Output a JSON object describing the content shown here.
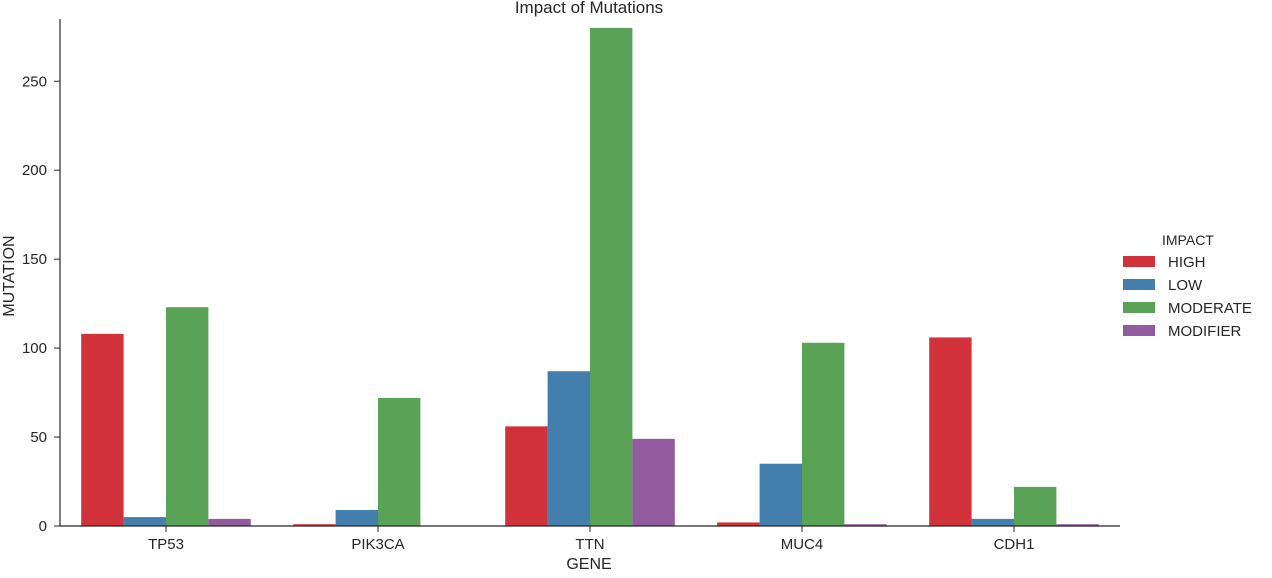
{
  "chart_data": {
    "type": "bar",
    "title": "Impact of Mutations",
    "xlabel": "GENE",
    "ylabel": "MUTATION",
    "categories": [
      "TP53",
      "PIK3CA",
      "TTN",
      "MUC4",
      "CDH1"
    ],
    "ylim": [
      0,
      285
    ],
    "yticks": [
      0,
      50,
      100,
      150,
      200,
      250
    ],
    "grid": false,
    "legend_title": "IMPACT",
    "legend_position": "right",
    "series": [
      {
        "name": "HIGH",
        "color": "#d1323a",
        "values": [
          108,
          1,
          56,
          2,
          106
        ]
      },
      {
        "name": "LOW",
        "color": "#447ead",
        "values": [
          5,
          9,
          87,
          35,
          4
        ]
      },
      {
        "name": "MODERATE",
        "color": "#5aa356",
        "values": [
          123,
          72,
          280,
          103,
          22
        ]
      },
      {
        "name": "MODIFIER",
        "color": "#925b9d",
        "values": [
          4,
          0,
          49,
          1,
          1
        ]
      }
    ]
  }
}
